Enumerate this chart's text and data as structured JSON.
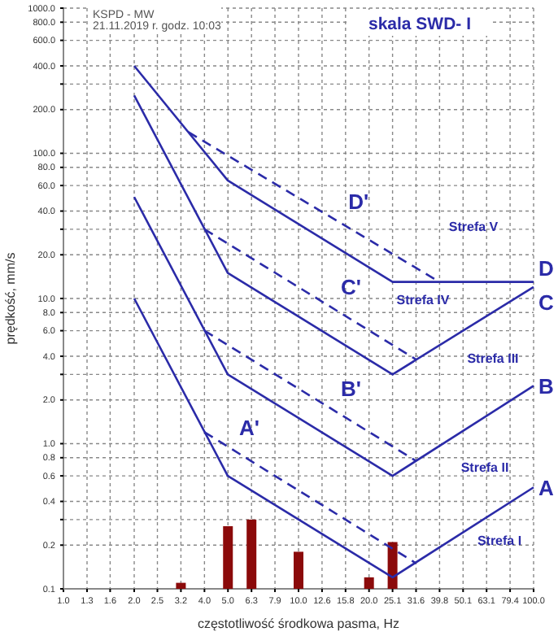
{
  "chart_data": {
    "type": "line",
    "xlabel": "częstotliwość środkowa pasma, Hz",
    "ylabel": "prędkość, mm/s",
    "annotations": [
      "KSPD - MW",
      "21.11.2019 r. godz. 10:03",
      "skala SWD- I",
      "Strefa V",
      "Strefa IV",
      "Strefa III",
      "Strefa II",
      "Strefa I"
    ],
    "log": "xy",
    "grid": true,
    "legend": false,
    "marker": "none",
    "xlim": [
      1,
      100
    ],
    "ylim": [
      0.1,
      1000
    ],
    "xticks": [
      {
        "value": 1,
        "label": "1.0"
      },
      {
        "value": 1.26,
        "label": "1.3"
      },
      {
        "value": 1.58,
        "label": "1.6"
      },
      {
        "value": 2,
        "label": "2.0"
      },
      {
        "value": 2.51,
        "label": "2.5"
      },
      {
        "value": 3.16,
        "label": "3.2"
      },
      {
        "value": 3.98,
        "label": "4.0"
      },
      {
        "value": 5.01,
        "label": "5.0"
      },
      {
        "value": 6.31,
        "label": "6.3"
      },
      {
        "value": 7.94,
        "label": "7.9"
      },
      {
        "value": 10,
        "label": "10.0"
      },
      {
        "value": 12.59,
        "label": "12.6"
      },
      {
        "value": 15.85,
        "label": "15.8"
      },
      {
        "value": 19.95,
        "label": "20.0"
      },
      {
        "value": 25.12,
        "label": "25.1"
      },
      {
        "value": 31.62,
        "label": "31.6"
      },
      {
        "value": 39.81,
        "label": "39.8"
      },
      {
        "value": 50.12,
        "label": "50.1"
      },
      {
        "value": 63.1,
        "label": "63.1"
      },
      {
        "value": 79.43,
        "label": "79.4"
      },
      {
        "value": 100,
        "label": "100.0"
      }
    ],
    "yticks": [
      {
        "value": 0.1,
        "label": "0.1"
      },
      {
        "value": 0.2,
        "label": "0.2"
      },
      {
        "value": 0.3,
        "label": null
      },
      {
        "value": 0.4,
        "label": "0.4"
      },
      {
        "value": 0.6,
        "label": "0.6"
      },
      {
        "value": 0.8,
        "label": "0.8"
      },
      {
        "value": 1,
        "label": "1.0"
      },
      {
        "value": 2,
        "label": "2.0"
      },
      {
        "value": 3,
        "label": null
      },
      {
        "value": 4,
        "label": "4.0"
      },
      {
        "value": 6,
        "label": "6.0"
      },
      {
        "value": 8,
        "label": "8.0"
      },
      {
        "value": 10,
        "label": "10.0"
      },
      {
        "value": 20,
        "label": "20.0"
      },
      {
        "value": 30,
        "label": null
      },
      {
        "value": 40,
        "label": "40.0"
      },
      {
        "value": 60,
        "label": "60.0"
      },
      {
        "value": 80,
        "label": "80.0"
      },
      {
        "value": 100,
        "label": "100.0"
      },
      {
        "value": 200,
        "label": "200.0"
      },
      {
        "value": 300,
        "label": null
      },
      {
        "value": 400,
        "label": "400.0"
      },
      {
        "value": 600,
        "label": "600.0"
      },
      {
        "value": 800,
        "label": "800.0"
      },
      {
        "value": 1000,
        "label": "1000.0"
      }
    ],
    "series": [
      {
        "type": "bar",
        "color": "#8b0a0a",
        "x": [
          3.16,
          5.01,
          6.31,
          10,
          19.95,
          25.12
        ],
        "values": [
          0.11,
          0.27,
          0.3,
          0.18,
          0.12,
          0.21
        ]
      },
      {
        "name": "D",
        "color": "#2b2ba8",
        "line_style": "solid",
        "x": [
          2,
          5,
          25.12,
          100
        ],
        "values": [
          400,
          65,
          13,
          13
        ]
      },
      {
        "name": "C",
        "color": "#2b2ba8",
        "line_style": "solid",
        "x": [
          2,
          5,
          25.12,
          100
        ],
        "values": [
          250,
          15,
          3,
          12
        ]
      },
      {
        "name": "B",
        "color": "#2b2ba8",
        "line_style": "solid",
        "x": [
          2,
          5,
          25.12,
          100
        ],
        "values": [
          50,
          3,
          0.6,
          2.5
        ]
      },
      {
        "name": "A",
        "color": "#2b2ba8",
        "line_style": "solid",
        "x": [
          2,
          5,
          25.12,
          100
        ],
        "values": [
          10,
          0.6,
          0.12,
          0.5
        ]
      },
      {
        "name": "D'",
        "color": "#2b2ba8",
        "line_style": "dashed",
        "x": [
          3.4,
          39.8
        ],
        "values": [
          140,
          13
        ]
      },
      {
        "name": "C'",
        "color": "#2b2ba8",
        "line_style": "dashed",
        "x": [
          3.98,
          31.62
        ],
        "values": [
          30,
          3.8
        ]
      },
      {
        "name": "B'",
        "color": "#2b2ba8",
        "line_style": "dashed",
        "x": [
          3.98,
          31.62
        ],
        "values": [
          6,
          0.76
        ]
      },
      {
        "name": "A'",
        "color": "#2b2ba8",
        "line_style": "dashed",
        "x": [
          3.98,
          31.62
        ],
        "values": [
          1.2,
          0.15
        ]
      }
    ]
  }
}
